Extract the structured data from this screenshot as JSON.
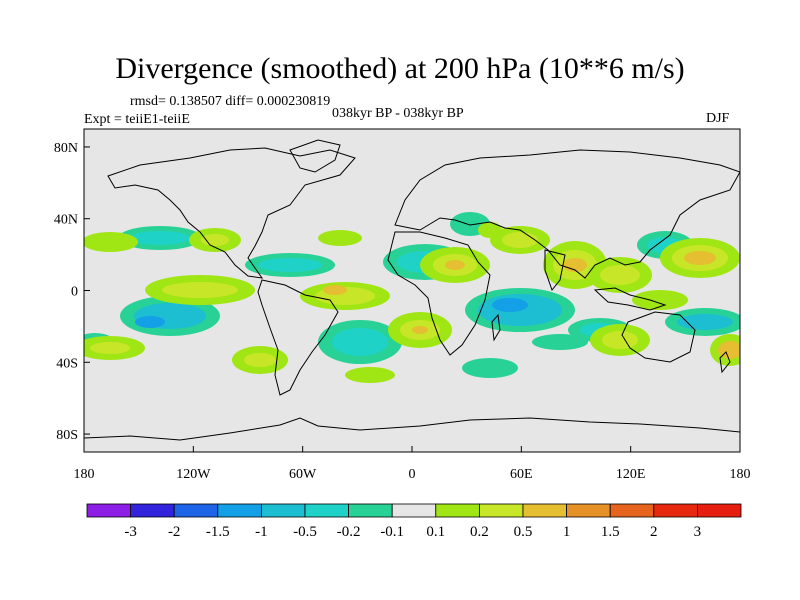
{
  "title": "Divergence (smoothed) at 200 hPa (10**6 m/s)",
  "stats_text": "rmsd= 0.138507  diff= 0.000230819",
  "expt_text": "Expt = teiiE1-teiiE",
  "period_text": "038kyr BP - 038kyr BP",
  "season": "DJF",
  "map": {
    "projection": "cylindrical-equidistant",
    "lon_range": [
      -180,
      180
    ],
    "lat_range": [
      -90,
      90
    ],
    "x_tick_labels": [
      "180",
      "120W",
      "60W",
      "0",
      "60E",
      "120E",
      "180"
    ],
    "y_tick_labels": [
      "80N",
      "40N",
      "0",
      "40S",
      "80S"
    ],
    "background_color": "#e6e6e6"
  },
  "colorbar": {
    "labels": [
      "-3",
      "-2",
      "-1.5",
      "-1",
      "-0.5",
      "-0.2",
      "-0.1",
      "0.1",
      "0.2",
      "0.5",
      "1",
      "1.5",
      "2",
      "3"
    ],
    "colors": [
      "#8c1ee6",
      "#3223dc",
      "#1e64e6",
      "#14a0e6",
      "#1ebed2",
      "#1ed2c8",
      "#28d296",
      "#e6e6e6",
      "#a0e614",
      "#c8e628",
      "#e6be32",
      "#e69128",
      "#e6641e",
      "#e6280f",
      "#e61e0f"
    ]
  }
}
